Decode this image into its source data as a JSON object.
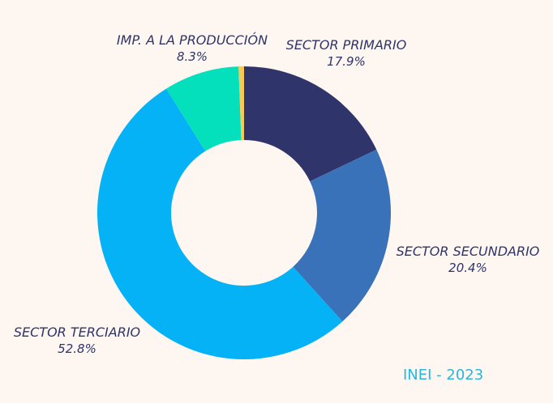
{
  "chart_data": {
    "type": "pie",
    "donut": true,
    "start_angle_deg": 0,
    "direction": "clockwise",
    "slices": [
      {
        "label": "SECTOR PRIMARIO",
        "pct_label": "17.9%",
        "value": 17.9,
        "color": "#2f346b"
      },
      {
        "label": "SECTOR SECUNDARIO",
        "pct_label": "20.4%",
        "value": 20.4,
        "color": "#3a72b9"
      },
      {
        "label": "SECTOR TERCIARIO",
        "pct_label": "52.8%",
        "value": 52.8,
        "color": "#05b2f5"
      },
      {
        "label": "IMP. A LA PRODUCCIÓN",
        "pct_label": "8.3%",
        "value": 8.3,
        "color": "#03e0bb"
      },
      {
        "label": "",
        "pct_label": "",
        "value": 0.6,
        "color": "#f8c95a"
      }
    ],
    "legend": "none"
  },
  "source": {
    "text": "INEI - 2023",
    "color": "#2ab7dd"
  },
  "background_color": "#fdf6f1"
}
